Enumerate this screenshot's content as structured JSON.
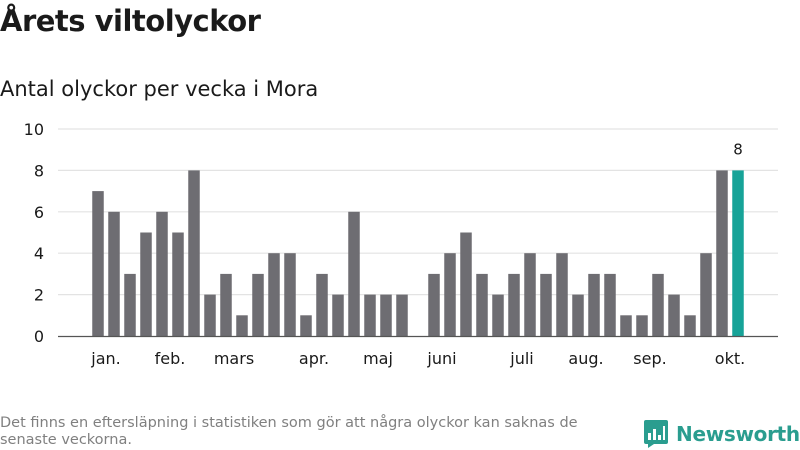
{
  "title": "Årets viltolyckor",
  "subtitle": "Antal olyckor per vecka i Mora",
  "footer_note": "Det finns en eftersläpning i statistiken som gör att några olyckor kan saknas de senaste veckorna.",
  "brand": {
    "name": "Newsworthy",
    "icon": "bar-chart-logo-icon",
    "color": "#2a9d8f"
  },
  "chart_data": {
    "type": "bar",
    "title": "Årets viltolyckor",
    "subtitle": "Antal olyckor per vecka i Mora",
    "xlabel": "",
    "ylabel": "",
    "ylim": [
      0,
      10
    ],
    "yticks": [
      0,
      2,
      4,
      6,
      8,
      10
    ],
    "grid": true,
    "legend": "none",
    "x": [
      1,
      2,
      3,
      4,
      5,
      6,
      7,
      8,
      9,
      10,
      11,
      12,
      13,
      14,
      15,
      16,
      17,
      18,
      19,
      20,
      21,
      22,
      23,
      24,
      25,
      26,
      27,
      28,
      29,
      30,
      31,
      32,
      33,
      34,
      35,
      36,
      37,
      38,
      39,
      40,
      41
    ],
    "values": [
      7,
      6,
      3,
      5,
      6,
      5,
      8,
      2,
      3,
      1,
      3,
      4,
      4,
      1,
      3,
      2,
      6,
      2,
      2,
      2,
      null,
      3,
      4,
      5,
      3,
      2,
      3,
      4,
      3,
      4,
      2,
      3,
      3,
      1,
      1,
      3,
      2,
      1,
      4,
      8,
      8
    ],
    "month_labels": [
      {
        "label": "jan.",
        "at": 1.5
      },
      {
        "label": "feb.",
        "at": 5.5
      },
      {
        "label": "mars",
        "at": 9.5
      },
      {
        "label": "apr.",
        "at": 14.5
      },
      {
        "label": "maj",
        "at": 18.5
      },
      {
        "label": "juni",
        "at": 22.5
      },
      {
        "label": "juli",
        "at": 27.5
      },
      {
        "label": "aug.",
        "at": 31.5
      },
      {
        "label": "sep.",
        "at": 35.5
      },
      {
        "label": "okt.",
        "at": 40.5
      }
    ],
    "bar_color": "#6e6d72",
    "highlight_color": "#17a398",
    "highlight_index": 40,
    "highlight_label": "8"
  }
}
